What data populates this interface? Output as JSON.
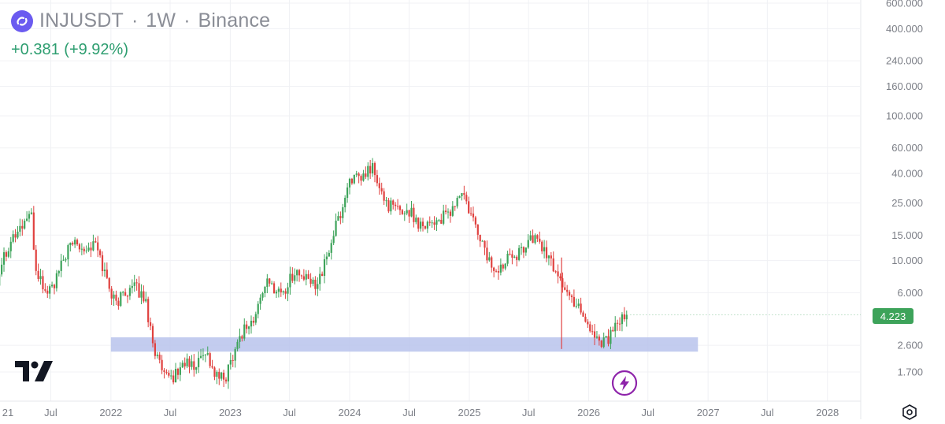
{
  "header": {
    "symbol": "INJUSDT",
    "interval": "1W",
    "exchange": "Binance",
    "separator": "·",
    "change": "+0.381 (+9.92%)"
  },
  "price_label": "4.223",
  "icons": {
    "logo": "injective-logo-icon",
    "tradingview": "tradingview-logo-icon",
    "flash": "flash-icon",
    "settings": "settings-icon"
  },
  "colors": {
    "up": "#3da35a",
    "down": "#e0413f",
    "zone": "#b8c3ec",
    "change_text": "#2e9e70",
    "price_tag": "#3da35a"
  },
  "chart_data": {
    "type": "candlestick",
    "yscale": "log",
    "ylim": [
      1.2,
      650
    ],
    "y_ticks": [
      "600.000",
      "400.000",
      "240.000",
      "160.000",
      "100.000",
      "60.000",
      "40.000",
      "25.000",
      "15.000",
      "10.000",
      "6.000",
      "2.600",
      "1.700"
    ],
    "y_tick_values": [
      600,
      400,
      240,
      160,
      100,
      60,
      40,
      25,
      15,
      10,
      6,
      2.6,
      1.7
    ],
    "x_ticks": [
      "21",
      "Jul",
      "2022",
      "Jul",
      "2023",
      "Jul",
      "2024",
      "Jul",
      "2025",
      "Jul",
      "2026",
      "Jul",
      "2027",
      "Jul",
      "2028"
    ],
    "x_tick_dates": [
      "2021-01-01",
      "2021-07-01",
      "2022-01-01",
      "2022-07-01",
      "2023-01-01",
      "2023-07-01",
      "2024-01-01",
      "2024-07-01",
      "2025-01-01",
      "2025-07-01",
      "2026-01-01",
      "2026-07-01",
      "2027-01-01",
      "2027-07-01",
      "2028-01-01"
    ],
    "last_price": 4.223,
    "support_zone": {
      "low": 2.35,
      "high": 2.95,
      "start": "2022-01-01",
      "end": "2026-12-01"
    },
    "weekly_closes": [
      [
        "2020-12-28",
        4.3
      ],
      [
        "2021-02-01",
        10.0
      ],
      [
        "2021-03-01",
        14.0
      ],
      [
        "2021-04-01",
        17.0
      ],
      [
        "2021-05-01",
        22.0
      ],
      [
        "2021-05-15",
        9.0
      ],
      [
        "2021-06-15",
        6.0
      ],
      [
        "2021-07-15",
        7.0
      ],
      [
        "2021-08-15",
        11.0
      ],
      [
        "2021-09-15",
        14.0
      ],
      [
        "2021-10-15",
        12.0
      ],
      [
        "2021-11-15",
        13.0
      ],
      [
        "2021-12-15",
        8.0
      ],
      [
        "2022-01-15",
        5.0
      ],
      [
        "2022-02-15",
        6.2
      ],
      [
        "2022-03-15",
        6.5
      ],
      [
        "2022-04-15",
        5.5
      ],
      [
        "2022-05-15",
        2.4
      ],
      [
        "2022-06-15",
        1.5
      ],
      [
        "2022-07-15",
        1.6
      ],
      [
        "2022-08-15",
        2.0
      ],
      [
        "2022-09-15",
        1.8
      ],
      [
        "2022-10-15",
        2.5
      ],
      [
        "2022-11-15",
        1.6
      ],
      [
        "2022-12-15",
        1.5
      ],
      [
        "2023-01-15",
        2.5
      ],
      [
        "2023-02-15",
        3.5
      ],
      [
        "2023-03-15",
        3.8
      ],
      [
        "2023-04-15",
        7.0
      ],
      [
        "2023-05-15",
        6.5
      ],
      [
        "2023-06-15",
        6.0
      ],
      [
        "2023-07-15",
        8.5
      ],
      [
        "2023-08-15",
        7.5
      ],
      [
        "2023-09-15",
        6.8
      ],
      [
        "2023-10-15",
        9.0
      ],
      [
        "2023-11-15",
        16.0
      ],
      [
        "2023-12-15",
        25.0
      ],
      [
        "2024-01-01",
        38.0
      ],
      [
        "2024-02-01",
        35.0
      ],
      [
        "2024-03-10",
        45.0
      ],
      [
        "2024-04-01",
        30.0
      ],
      [
        "2024-05-01",
        24.0
      ],
      [
        "2024-06-01",
        22.0
      ],
      [
        "2024-07-01",
        22.0
      ],
      [
        "2024-08-01",
        18.0
      ],
      [
        "2024-09-01",
        18.5
      ],
      [
        "2024-10-01",
        19.0
      ],
      [
        "2024-11-01",
        21.0
      ],
      [
        "2024-12-10",
        30.0
      ],
      [
        "2025-01-01",
        21.0
      ],
      [
        "2025-02-01",
        15.0
      ],
      [
        "2025-03-01",
        10.0
      ],
      [
        "2025-04-01",
        8.0
      ],
      [
        "2025-05-01",
        12.0
      ],
      [
        "2025-06-01",
        11.0
      ],
      [
        "2025-07-01",
        14.0
      ],
      [
        "2025-08-01",
        14.0
      ],
      [
        "2025-09-01",
        10.0
      ],
      [
        "2025-10-01",
        8.0
      ],
      [
        "2025-11-01",
        5.5
      ],
      [
        "2025-12-01",
        5.0
      ],
      [
        "2026-01-01",
        3.5
      ],
      [
        "2026-02-01",
        2.8
      ],
      [
        "2026-03-01",
        2.9
      ],
      [
        "2026-04-01",
        3.6
      ],
      [
        "2026-05-01",
        4.223
      ]
    ]
  }
}
